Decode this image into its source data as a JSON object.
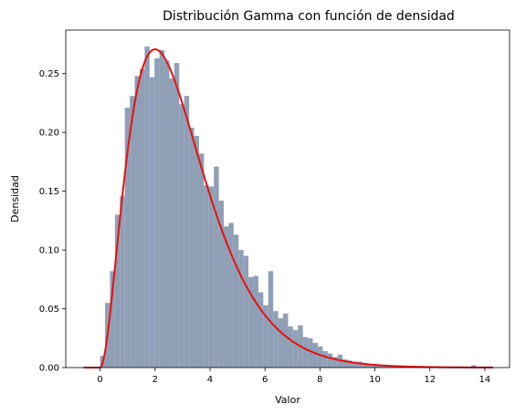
{
  "chart_data": {
    "type": "bar",
    "title": "Distribución Gamma con función de densidad",
    "xlabel": "Valor",
    "ylabel": "Densidad",
    "xlim": [
      -1.25,
      14.9
    ],
    "ylim": [
      0,
      0.287
    ],
    "xticks": [
      0,
      2,
      4,
      6,
      8,
      10,
      12,
      14
    ],
    "yticks": [
      0.0,
      0.05,
      0.1,
      0.15,
      0.2,
      0.25
    ],
    "xtick_labels": [
      "0",
      "2",
      "4",
      "6",
      "8",
      "10",
      "12",
      "14"
    ],
    "ytick_labels": [
      "0.00",
      "0.05",
      "0.10",
      "0.15",
      "0.20",
      "0.25"
    ],
    "grid": false,
    "legend": "none",
    "histogram": {
      "bin_width": 0.18,
      "bins": [
        [
          0.0,
          0.01
        ],
        [
          0.18,
          0.055
        ],
        [
          0.36,
          0.082
        ],
        [
          0.54,
          0.13
        ],
        [
          0.72,
          0.146
        ],
        [
          0.9,
          0.221
        ],
        [
          1.08,
          0.231
        ],
        [
          1.26,
          0.248
        ],
        [
          1.44,
          0.254
        ],
        [
          1.62,
          0.273
        ],
        [
          1.8,
          0.247
        ],
        [
          1.98,
          0.263
        ],
        [
          2.16,
          0.27
        ],
        [
          2.34,
          0.261
        ],
        [
          2.52,
          0.246
        ],
        [
          2.7,
          0.259
        ],
        [
          2.88,
          0.224
        ],
        [
          3.06,
          0.231
        ],
        [
          3.24,
          0.204
        ],
        [
          3.42,
          0.197
        ],
        [
          3.6,
          0.182
        ],
        [
          3.78,
          0.155
        ],
        [
          3.96,
          0.154
        ],
        [
          4.14,
          0.171
        ],
        [
          4.32,
          0.142
        ],
        [
          4.5,
          0.12
        ],
        [
          4.68,
          0.123
        ],
        [
          4.86,
          0.113
        ],
        [
          5.04,
          0.1
        ],
        [
          5.22,
          0.095
        ],
        [
          5.4,
          0.077
        ],
        [
          5.58,
          0.078
        ],
        [
          5.76,
          0.064
        ],
        [
          5.94,
          0.053
        ],
        [
          6.12,
          0.082
        ],
        [
          6.3,
          0.048
        ],
        [
          6.48,
          0.042
        ],
        [
          6.66,
          0.046
        ],
        [
          6.84,
          0.035
        ],
        [
          7.02,
          0.032
        ],
        [
          7.2,
          0.036
        ],
        [
          7.38,
          0.026
        ],
        [
          7.56,
          0.025
        ],
        [
          7.74,
          0.021
        ],
        [
          7.92,
          0.018
        ],
        [
          8.1,
          0.014
        ],
        [
          8.28,
          0.012
        ],
        [
          8.46,
          0.009
        ],
        [
          8.64,
          0.011
        ],
        [
          8.82,
          0.007
        ],
        [
          9.0,
          0.006
        ],
        [
          9.18,
          0.005
        ],
        [
          9.36,
          0.005
        ],
        [
          9.54,
          0.004
        ],
        [
          9.72,
          0.003
        ],
        [
          9.9,
          0.003
        ],
        [
          10.08,
          0.002
        ],
        [
          10.26,
          0.002
        ],
        [
          10.44,
          0.002
        ],
        [
          10.62,
          0.001
        ],
        [
          10.8,
          0.001
        ],
        [
          11.16,
          0.001
        ],
        [
          11.52,
          0.001
        ],
        [
          12.24,
          0.001
        ],
        [
          13.5,
          0.002
        ]
      ]
    },
    "density_curve": {
      "distribution": "gamma",
      "shape": 3,
      "scale": 1,
      "x_range": [
        -0.6,
        14.3
      ]
    },
    "colors": {
      "bars": "#8f9fb6",
      "curve": "#e8100d"
    }
  }
}
